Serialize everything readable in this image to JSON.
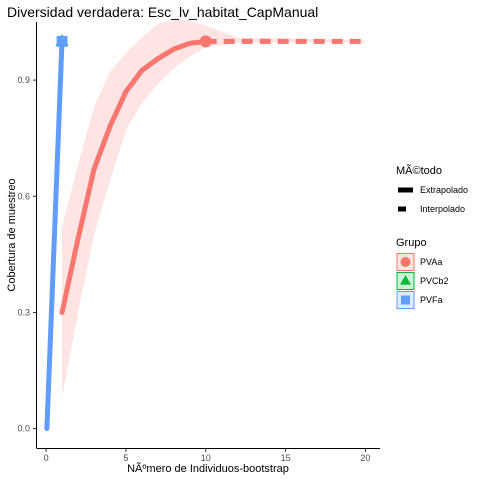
{
  "chart_data": {
    "type": "line",
    "title": "Diversidad verdadera: Esc_lv_habitat_CapManual",
    "xlabel": "NÃºmero de Individuos-bootstrap",
    "ylabel": "Cobertura de muestreo",
    "xlim": [
      -0.6,
      20.6
    ],
    "ylim": [
      -0.05,
      1.05
    ],
    "x_ticks": [
      0,
      5,
      10,
      15,
      20
    ],
    "x_tick_labels": [
      "0",
      "5",
      "10",
      "15",
      "20"
    ],
    "y_ticks": [
      0.0,
      0.3,
      0.6,
      0.9
    ],
    "y_tick_labels": [
      "0.0",
      "0.3",
      "0.6",
      "0.9"
    ],
    "grid": false,
    "legend_placement": "right",
    "legend": {
      "method_title": "MÃ©todo",
      "method_entries": [
        {
          "label": "Extrapolado",
          "style": "solid"
        },
        {
          "label": "Interpolado",
          "style": "dashed"
        }
      ],
      "group_title": "Grupo",
      "group_entries": [
        {
          "label": "PVAa",
          "color": "#F8766D",
          "shape": "circle"
        },
        {
          "label": "PVCb2",
          "color": "#00BA38",
          "shape": "triangle"
        },
        {
          "label": "PVFa",
          "color": "#619CFF",
          "shape": "square"
        }
      ]
    },
    "series": [
      {
        "name": "PVAa",
        "color": "#F8766D",
        "solid": {
          "x": [
            1,
            2,
            3,
            4,
            5,
            6,
            7,
            8,
            9,
            10
          ],
          "y": [
            0.3,
            0.49,
            0.67,
            0.78,
            0.87,
            0.925,
            0.955,
            0.98,
            0.995,
            1.0
          ]
        },
        "dashed": {
          "x": [
            10,
            20
          ],
          "y": [
            1.0,
            1.0
          ]
        },
        "ribbon": {
          "x": [
            1,
            2,
            3,
            4,
            5,
            6,
            7,
            8,
            9,
            10,
            11,
            12,
            20
          ],
          "lower": [
            0.08,
            0.3,
            0.5,
            0.64,
            0.77,
            0.84,
            0.89,
            0.93,
            0.96,
            0.985,
            0.99,
            0.997,
            0.997
          ],
          "upper": [
            0.52,
            0.68,
            0.83,
            0.92,
            0.97,
            1.01,
            1.045,
            1.055,
            1.055,
            1.04,
            1.025,
            1.01,
            1.003
          ]
        },
        "observed_point": {
          "x": 10,
          "y": 1.0
        }
      },
      {
        "name": "PVCb2",
        "color": "#00BA38",
        "observed_point": {
          "x": 1,
          "y": 1.0
        }
      },
      {
        "name": "PVFa",
        "color": "#619CFF",
        "solid": {
          "x": [
            0.05,
            1
          ],
          "y": [
            0.0,
            1.0
          ]
        },
        "observed_point": {
          "x": 1,
          "y": 1.0
        }
      }
    ]
  }
}
